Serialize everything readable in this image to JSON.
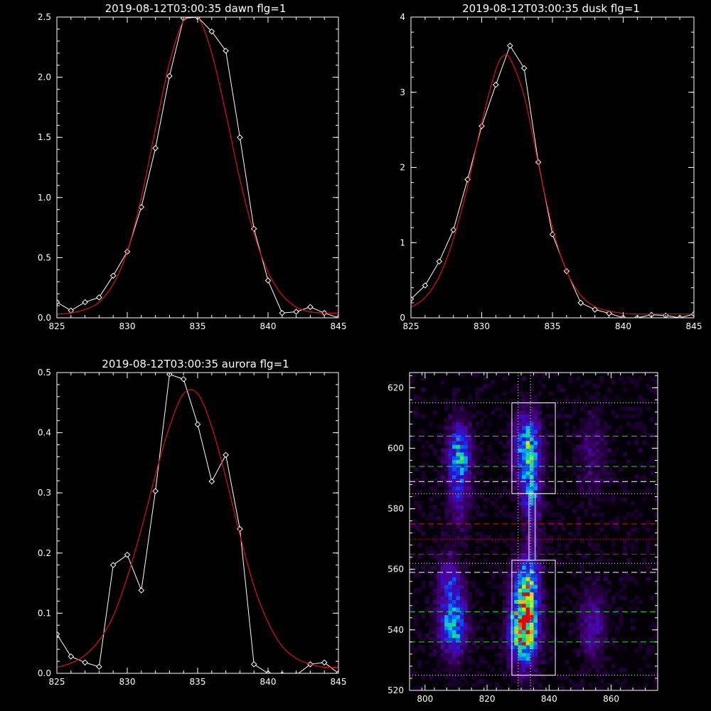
{
  "chart_data": [
    {
      "type": "line",
      "title": "2019-08-12T03:00:35 dawn flg=1",
      "xlim": [
        825,
        845
      ],
      "ylim": [
        0,
        2.5
      ],
      "xticks": [
        "825",
        "830",
        "835",
        "840",
        "845"
      ],
      "yticks": [
        "0.0",
        "0.5",
        "1.0",
        "1.5",
        "2.0",
        "2.5"
      ],
      "series": [
        {
          "style": "data-with-diamond-markers",
          "color": "#ffffff",
          "x": [
            825,
            826,
            827,
            828,
            829,
            830,
            831,
            832,
            833,
            834,
            835,
            836,
            837,
            838,
            839,
            840,
            841,
            842,
            843,
            844,
            845
          ],
          "y": [
            0.13,
            0.06,
            0.13,
            0.17,
            0.35,
            0.55,
            0.92,
            1.41,
            2.01,
            2.49,
            2.5,
            2.38,
            2.22,
            1.5,
            0.74,
            0.31,
            0.04,
            0.05,
            0.09,
            0.04,
            0.0
          ]
        },
        {
          "style": "gaussian-fit",
          "color": "#dd1111",
          "x": [
            825,
            826,
            827,
            828,
            829,
            830,
            831,
            832,
            833,
            834,
            835,
            836,
            837,
            838,
            839,
            840,
            841,
            842,
            843,
            844,
            845
          ],
          "y": [
            0.03,
            0.04,
            0.07,
            0.13,
            0.28,
            0.55,
            1.0,
            1.57,
            2.12,
            2.47,
            2.5,
            2.2,
            1.7,
            1.15,
            0.7,
            0.38,
            0.19,
            0.09,
            0.05,
            0.04,
            0.04
          ]
        }
      ]
    },
    {
      "type": "line",
      "title": "2019-08-12T03:00:35 dusk flg=1",
      "xlim": [
        825,
        845
      ],
      "ylim": [
        0,
        4
      ],
      "xticks": [
        "825",
        "830",
        "835",
        "840",
        "845"
      ],
      "yticks": [
        "0",
        "1",
        "2",
        "3",
        "4"
      ],
      "series": [
        {
          "style": "data-with-diamond-markers",
          "color": "#ffffff",
          "x": [
            825,
            826,
            827,
            828,
            829,
            830,
            831,
            832,
            833,
            834,
            835,
            836,
            837,
            838,
            839,
            840,
            841,
            842,
            843,
            844,
            845
          ],
          "y": [
            0.25,
            0.43,
            0.75,
            1.17,
            1.84,
            2.55,
            3.1,
            3.62,
            3.32,
            2.07,
            1.11,
            0.62,
            0.2,
            0.11,
            0.06,
            0.0,
            0.0,
            0.04,
            0.03,
            0.0,
            0.05
          ]
        },
        {
          "style": "gaussian-fit",
          "color": "#dd1111",
          "x": [
            825,
            826,
            827,
            828,
            829,
            830,
            831,
            831.5,
            832,
            833,
            834,
            835,
            836,
            837,
            838,
            839,
            840,
            841,
            842,
            843,
            844,
            845
          ],
          "y": [
            0.14,
            0.27,
            0.55,
            1.05,
            1.75,
            2.6,
            3.3,
            3.48,
            3.45,
            2.95,
            2.05,
            1.2,
            0.62,
            0.3,
            0.15,
            0.09,
            0.06,
            0.05,
            0.05,
            0.05,
            0.05,
            0.05
          ]
        }
      ]
    },
    {
      "type": "line",
      "title": "2019-08-12T03:00:35 aurora flg=1",
      "xlim": [
        825,
        845
      ],
      "ylim": [
        0,
        0.5
      ],
      "xticks": [
        "825",
        "830",
        "835",
        "840",
        "845"
      ],
      "yticks": [
        "0.0",
        "0.1",
        "0.2",
        "0.3",
        "0.4",
        "0.5"
      ],
      "series": [
        {
          "style": "data-with-diamond-markers",
          "color": "#ffffff",
          "x": [
            825,
            826,
            827,
            828,
            829,
            830,
            831,
            832,
            833,
            834,
            835,
            836,
            837,
            838,
            839,
            840,
            841,
            842,
            843,
            844,
            845
          ],
          "y": [
            0.065,
            0.028,
            0.018,
            0.011,
            0.18,
            0.197,
            0.138,
            0.303,
            0.497,
            0.489,
            0.414,
            0.319,
            0.363,
            0.24,
            0.015,
            0.0,
            -0.002,
            -0.003,
            0.015,
            0.018,
            0.0
          ]
        },
        {
          "style": "gaussian-fit",
          "color": "#dd1111",
          "x": [
            825,
            826,
            827,
            828,
            829,
            830,
            831,
            832,
            833,
            834,
            835,
            836,
            837,
            838,
            839,
            840,
            841,
            842,
            843,
            844,
            845
          ],
          "y": [
            0.01,
            0.017,
            0.03,
            0.055,
            0.095,
            0.16,
            0.24,
            0.33,
            0.41,
            0.465,
            0.465,
            0.41,
            0.325,
            0.23,
            0.145,
            0.085,
            0.045,
            0.025,
            0.015,
            0.01,
            0.01
          ]
        }
      ]
    },
    {
      "type": "heatmap",
      "title": "",
      "xlim": [
        795,
        875
      ],
      "ylim": [
        520,
        625
      ],
      "xticks": [
        "800",
        "820",
        "840",
        "860"
      ],
      "yticks": [
        "520",
        "540",
        "560",
        "580",
        "600",
        "620"
      ],
      "colormap": "rainbow (black-purple-blue-cyan-green-yellow-red)",
      "blobs": [
        {
          "x": 811,
          "y": 598,
          "sx": 2.6,
          "sy": 7,
          "amp": 0.5
        },
        {
          "x": 811,
          "y": 584,
          "sx": 2.4,
          "sy": 8,
          "amp": 0.22
        },
        {
          "x": 809,
          "y": 542,
          "sx": 3.0,
          "sy": 7,
          "amp": 0.55
        },
        {
          "x": 808,
          "y": 557,
          "sx": 2.6,
          "sy": 6,
          "amp": 0.28
        },
        {
          "x": 833,
          "y": 600,
          "sx": 2.8,
          "sy": 8,
          "amp": 0.62
        },
        {
          "x": 834,
          "y": 585,
          "sx": 2.2,
          "sy": 6,
          "amp": 0.35
        },
        {
          "x": 832,
          "y": 541,
          "sx": 3.0,
          "sy": 8,
          "amp": 1.0
        },
        {
          "x": 833,
          "y": 556,
          "sx": 2.6,
          "sy": 7,
          "amp": 0.5
        },
        {
          "x": 835,
          "y": 572,
          "sx": 1.2,
          "sy": 9,
          "amp": 0.18
        },
        {
          "x": 854,
          "y": 542,
          "sx": 3.0,
          "sy": 8,
          "amp": 0.22
        },
        {
          "x": 854,
          "y": 598,
          "sx": 3.0,
          "sy": 9,
          "amp": 0.15
        }
      ],
      "boxes": [
        {
          "x0": 828,
          "x1": 842,
          "y0": 585,
          "y1": 615,
          "color": "#ffffff"
        },
        {
          "x0": 828,
          "x1": 842,
          "y0": 525,
          "y1": 563,
          "color": "#ffffff"
        },
        {
          "x0": 833.5,
          "x1": 835.5,
          "y0": 563,
          "y1": 585,
          "color": "#ffffff"
        }
      ],
      "hlines": [
        {
          "y": 615,
          "style": "dotted",
          "color": "#ffffff"
        },
        {
          "y": 604,
          "style": "dashed",
          "color": "#22dd22"
        },
        {
          "y": 594,
          "style": "dashed",
          "color": "#22dd22"
        },
        {
          "y": 589,
          "style": "dashed",
          "color": "#ffffff"
        },
        {
          "y": 585,
          "style": "dotted",
          "color": "#ffffff"
        },
        {
          "y": 575,
          "style": "dashed",
          "color": "#dd1111"
        },
        {
          "y": 570,
          "style": "dotted",
          "color": "#dd1111"
        },
        {
          "y": 565,
          "style": "dashed",
          "color": "#dd1111"
        },
        {
          "y": 562,
          "style": "dotted",
          "color": "#ffffff"
        },
        {
          "y": 559,
          "style": "dashed",
          "color": "#ffffff"
        },
        {
          "y": 546,
          "style": "dashed",
          "color": "#22dd22"
        },
        {
          "y": 536,
          "style": "dashed",
          "color": "#22dd22"
        },
        {
          "y": 525,
          "style": "dotted",
          "color": "#ffffff"
        }
      ],
      "vlines": [
        {
          "x": 830,
          "style": "dotted",
          "color": "#ffffff"
        },
        {
          "x": 834,
          "style": "dotted",
          "color": "#ffffff"
        }
      ]
    }
  ]
}
